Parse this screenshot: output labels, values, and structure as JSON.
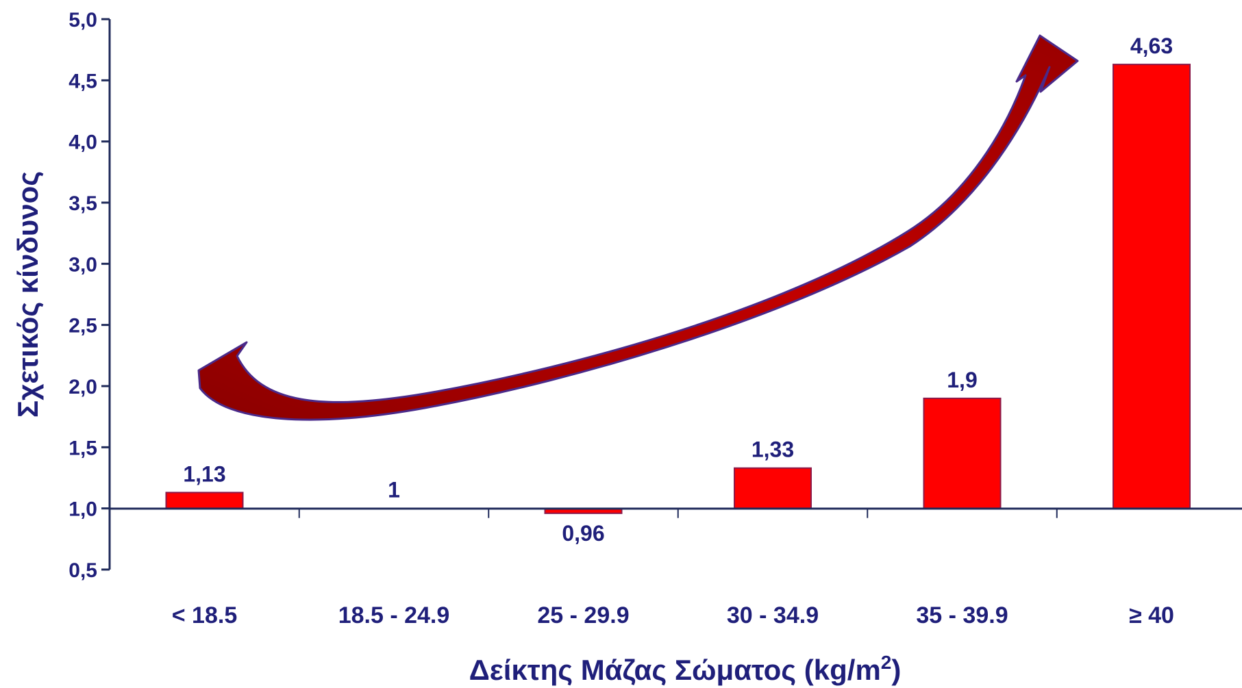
{
  "chart_data": {
    "type": "bar",
    "categories": [
      "< 18.5",
      "18.5 - 24.9",
      "25 - 29.9",
      "30 - 34.9",
      "35 - 39.9",
      "≥ 40"
    ],
    "values": [
      1.13,
      1,
      0.96,
      1.33,
      1.9,
      4.63
    ],
    "value_labels": [
      "1,13",
      "1",
      "0,96",
      "1,33",
      "1,9",
      "4,63"
    ],
    "baseline": 1.0,
    "ylim": [
      0.5,
      5.0
    ],
    "yticks": [
      0.5,
      1.0,
      1.5,
      2.0,
      2.5,
      3.0,
      3.5,
      4.0,
      4.5,
      5.0
    ],
    "ytick_labels": [
      "0,5",
      "1,0",
      "1,5",
      "2,0",
      "2,5",
      "3,0",
      "3,5",
      "4,0",
      "4,5",
      "5,0"
    ],
    "ylabel": "Σχετικός κίνδυνος",
    "xlabel": "Δείκτης Μάζας Σώματος (kg/m",
    "xlabel_superscript": "2",
    "xlabel_suffix": ")",
    "grid": false,
    "legend": "none",
    "annotation": "curved-arrow-rising",
    "colors": {
      "bar_fill": "#ff0000",
      "bar_edge": "#8a1a4a",
      "text": "#1f1f7a",
      "axis": "#1f2a5a",
      "arrow_fill": "#b00000",
      "arrow_edge": "#4a2a8a"
    }
  }
}
